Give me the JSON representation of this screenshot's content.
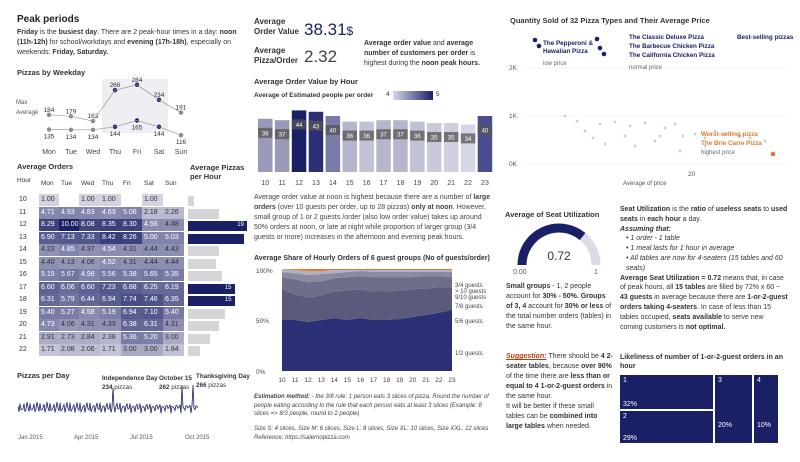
{
  "peak": {
    "title": "Peak periods",
    "busiest_word": "Friday",
    "t1": " is the ",
    "busiest_label": "busiest day",
    "t2": ". There are 2 peak-hour times in a day: ",
    "noon": "noon (11h-12h)",
    "t3": " for school/workdays and ",
    "evening": "evening (17h-18h)",
    "t4": ", especially on weekends: ",
    "weekend": "Friday, Saturday."
  },
  "weekday_chart": {
    "title": "Pizzas by Weekday",
    "max_label": "Max",
    "avg_label": "Average",
    "days": [
      "Mon",
      "Tue",
      "Wed",
      "Thu",
      "Fri",
      "Sat",
      "Sun"
    ],
    "max": [
      184,
      179,
      163,
      266,
      284,
      234,
      191
    ],
    "avg": [
      135,
      134,
      134,
      144,
      165,
      144,
      116
    ]
  },
  "kpi": {
    "aov_label": "Average Order Value",
    "aov_value": "38.31",
    "aov_unit": "$",
    "app_label": "Average Pizza/Order",
    "app_value": "2.32",
    "desc_a": "Average order value",
    "desc_b": " and ",
    "desc_c": "average number of customers per order",
    "desc_d": " is highest during the ",
    "desc_e": "noon peak hours."
  },
  "aov_hour": {
    "title": "Average Order Value by Hour",
    "legend_label": "Average of Estimated people per order",
    "legend_min": "4",
    "legend_max": "5",
    "hours": [
      "10",
      "11",
      "12",
      "13",
      "14",
      "15",
      "16",
      "17",
      "18",
      "19",
      "20",
      "21",
      "22",
      "23"
    ],
    "values": [
      38,
      37,
      44,
      43,
      40,
      36,
      36,
      37,
      37,
      36,
      35,
      35,
      34,
      40
    ],
    "colors": [
      "#9a9ab8",
      "#9a9ab8",
      "#1a2066",
      "#2b2f75",
      "#7a7aa8",
      "#b5b5cc",
      "#c2c2d6",
      "#b5b5cc",
      "#b5b5cc",
      "#c2c2d6",
      "#c9c9dc",
      "#cfcfe0",
      "#d6d6e6",
      "#4a4e90"
    ],
    "desc": [
      {
        "t": "Average order value at noon is highest because there are a number of ",
        "b": false
      },
      {
        "t": "large orders",
        "b": true
      },
      {
        "t": " (over 10 guests per order, up to 28 pizzas) ",
        "b": false
      },
      {
        "t": "only at noon",
        "b": true
      },
      {
        "t": ". However, small group of 1 or 2 guests /order (also low order value) takes up around 50% orders at noon, or late at night while proportion of larger group (3/4 guests or more) increases in the afternoon and evening peak hours.",
        "b": false
      }
    ]
  },
  "avg_orders": {
    "title": "Average Orders",
    "hour_label": "Hour",
    "days": [
      "Mon",
      "Tue",
      "Wed",
      "Thu",
      "Fri",
      "Sat",
      "Sun"
    ],
    "rows": [
      {
        "h": "10",
        "v": [
          "1.00",
          "",
          "1.00",
          "1.00",
          "",
          "1.00",
          ""
        ]
      },
      {
        "h": "11",
        "v": [
          "4.71",
          "4.93",
          "4.83",
          "4.63",
          "5.06",
          "2.18",
          "2.26"
        ]
      },
      {
        "h": "12",
        "v": [
          "8.29",
          "10.00",
          "8.08",
          "8.35",
          "8.30",
          "4.56",
          "4.48"
        ]
      },
      {
        "h": "13",
        "v": [
          "6.90",
          "7.13",
          "7.33",
          "8.42",
          "8.26",
          "5.00",
          "5.03"
        ]
      },
      {
        "h": "14",
        "v": [
          "4.23",
          "4.85",
          "4.37",
          "4.54",
          "4.31",
          "4.44",
          "4.43"
        ]
      },
      {
        "h": "15",
        "v": [
          "4.40",
          "4.13",
          "4.06",
          "4.52",
          "4.31",
          "4.44",
          "4.44"
        ]
      },
      {
        "h": "16",
        "v": [
          "5.15",
          "5.67",
          "4.98",
          "5.56",
          "5.38",
          "5.65",
          "5.35"
        ]
      },
      {
        "h": "17",
        "v": [
          "6.60",
          "6.06",
          "6.60",
          "7.23",
          "6.88",
          "6.25",
          "6.19"
        ]
      },
      {
        "h": "18",
        "v": [
          "6.31",
          "5.79",
          "6.44",
          "6.94",
          "7.74",
          "7.46",
          "6.35"
        ]
      },
      {
        "h": "19",
        "v": [
          "5.40",
          "5.27",
          "4.58",
          "5.19",
          "6.94",
          "7.10",
          "5.40"
        ]
      },
      {
        "h": "20",
        "v": [
          "4.73",
          "4.06",
          "4.31",
          "4.33",
          "6.38",
          "6.31",
          "4.31"
        ]
      },
      {
        "h": "21",
        "v": [
          "2.91",
          "2.73",
          "2.84",
          "2.38",
          "5.36",
          "5.20",
          "3.00"
        ]
      },
      {
        "h": "22",
        "v": [
          "1.71",
          "2.08",
          "2.06",
          "1.71",
          "3.00",
          "3.00",
          "1.84"
        ]
      }
    ]
  },
  "avg_pizzas_hour": {
    "title": "Average Pizzas per Hour",
    "values": [
      2,
      10,
      19,
      18,
      10,
      9,
      11,
      15,
      15,
      12,
      10,
      7,
      4
    ],
    "labels": [
      "",
      "",
      "19",
      "",
      "",
      "",
      "",
      "15",
      "15",
      "",
      "",
      "",
      ""
    ]
  },
  "pizzas_day": {
    "title": "Pizzas per Day",
    "x_labels": [
      "Jan 2015",
      "Apr 2015",
      "Jul 2015",
      "Oct 2015"
    ],
    "ann": [
      {
        "name": "Independence Day",
        "value": "234",
        "unit": "pizzas"
      },
      {
        "name": "October 15",
        "value": "262",
        "unit": "pizzas"
      },
      {
        "name": "Thanksgiving Day",
        "value": "266",
        "unit": "pizzas"
      }
    ]
  },
  "share": {
    "title": "Average Share of Hourly Orders of 6 guest groups (No of guests/order)",
    "y_labels": [
      "100%",
      "50%",
      "0%"
    ],
    "hours": [
      "10",
      "11",
      "12",
      "13",
      "14",
      "15",
      "16",
      "17",
      "18",
      "19",
      "20",
      "21",
      "22",
      "23"
    ],
    "groups": [
      "1/2 guests",
      "3/4 guests",
      "5/6 guests",
      "7/8 guests",
      "9/10 guests",
      "> 10 guests"
    ],
    "series": [
      [
        0.5,
        0.5,
        0.48,
        0.5,
        0.52,
        0.5,
        0.52,
        0.5,
        0.5,
        0.51,
        0.53,
        0.55,
        0.57,
        0.6
      ],
      [
        0.3,
        0.25,
        0.24,
        0.24,
        0.26,
        0.29,
        0.28,
        0.28,
        0.28,
        0.28,
        0.27,
        0.26,
        0.25,
        0.22
      ],
      [
        0.12,
        0.15,
        0.15,
        0.14,
        0.13,
        0.13,
        0.13,
        0.14,
        0.14,
        0.13,
        0.12,
        0.12,
        0.11,
        0.1
      ],
      [
        0.05,
        0.06,
        0.07,
        0.07,
        0.05,
        0.05,
        0.05,
        0.05,
        0.05,
        0.05,
        0.05,
        0.04,
        0.04,
        0.05
      ],
      [
        0.03,
        0.03,
        0.04,
        0.03,
        0.03,
        0.02,
        0.01,
        0.02,
        0.02,
        0.02,
        0.02,
        0.02,
        0.02,
        0.02
      ],
      [
        0.0,
        0.01,
        0.02,
        0.02,
        0.01,
        0.01,
        0.01,
        0.01,
        0.01,
        0.01,
        0.01,
        0.01,
        0.01,
        0.01
      ]
    ],
    "colors": [
      "#2b2f75",
      "#5a5a7a",
      "#6e6e8a",
      "#8a8aa0",
      "#b0b0c0",
      "#e07a2e"
    ],
    "method_label": "Estimation method:",
    "method_text": " - the 3/8 rule: 1 person eats 3 slices of pizza. Round the number of people eating according to the rule that each person eats at least 3 slices (Example: 8 slices => 8/3 people, round to 2 people)",
    "sizes": "Size S: 4 slices, Size M: 6 slices, Size L: 8 slices, Size XL: 10 slices, Size XXL: 12 slices",
    "reference": "Reference: https://salernopizza.com"
  },
  "scatter": {
    "title": "Quantity Sold of 32 Pizza Types and Their Average Price",
    "y_labels": [
      "2K",
      "1K",
      "0K"
    ],
    "x_labels": [
      "20"
    ],
    "x_title": "Average of price",
    "group1": [
      "The Pepperoni &",
      "Hawaiian Pizza"
    ],
    "group1_note": "low price",
    "group2": [
      "The Classic Deluxe Pizza",
      "The Barbecue Chicken Pizza",
      "The California Chicken Pizza"
    ],
    "group2_note": "normal price",
    "best": "Best-selling pizzas",
    "worst": "Worst-selling pizza",
    "worst_name": "The Brie Carre Pizza",
    "worst_note": "highest price"
  },
  "seat": {
    "title": "Average of Seat Utilization",
    "value": "0.72",
    "min": "0.00",
    "max": "1",
    "desc_a": "Small groups",
    "desc_b": " - 1, 2 people account for ",
    "desc_c": "30% - 50%. Groups of 3, 4",
    "desc_d": " account for ",
    "desc_e": "30% or less",
    "desc_f": " of the total number orders (tables) in the same hour.",
    "sug_label": "Suggestion:",
    "sug_a": " There should be ",
    "sug_b": "4 2-seater tables",
    "sug_c": ", because ",
    "sug_d": "over 90%",
    "sug_e": " of the time there are ",
    "sug_f": "less than or equal to 4 1-or-2-guest orders",
    "sug_g": " in the same hour.",
    "sug_h": "It will be better if these small tables can be ",
    "sug_i": "combined into large tables",
    "sug_j": " when needed."
  },
  "seat_text": {
    "def_a": "Seat Utilization",
    "def_b": " is the ",
    "def_c": "ratio",
    "def_d": " of ",
    "def_e": "useless seats",
    "def_f": " to ",
    "def_g": "used seats",
    "def_h": " in ",
    "def_i": "each hour",
    "def_j": " a day.",
    "assume": "Assuming that:",
    "bullets": [
      "1 order - 1 table",
      "1 meal lasts for 1 hour in average",
      "All tables are now for 4-seaters (15 tables and 60 seats)"
    ],
    "p_a": "Average Seat Utilization = 0.72",
    "p_b": " means that, in case of peak hours, all ",
    "p_c": "15 tables",
    "p_d": " are filled by 72% x 60 ~ ",
    "p_e": "43 guests",
    "p_f": " in average because there are ",
    "p_g": "1-or-2-guest orders taking 4-seaters",
    "p_h": ". In case of less than 15 tables occupied, ",
    "p_i": "seats available",
    "p_j": " to serve new coming customers is ",
    "p_k": "not optimal."
  },
  "likeliness": {
    "title": "Likeliness of number of 1-or-2-guest orders in an hour",
    "blocks": [
      {
        "n": "1",
        "pct": "32%"
      },
      {
        "n": "2",
        "pct": "29%"
      },
      {
        "n": "3",
        "pct": "20%"
      },
      {
        "n": "4",
        "pct": "10%"
      }
    ]
  }
}
